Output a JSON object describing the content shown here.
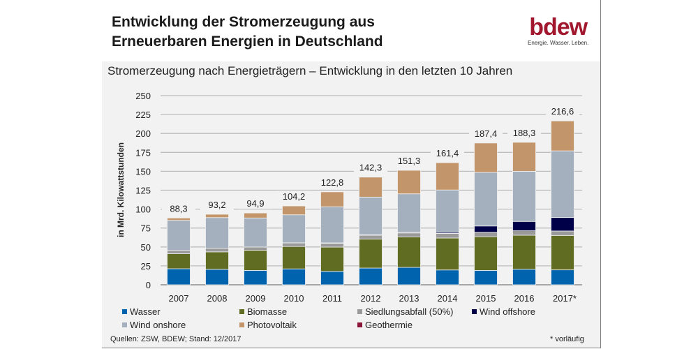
{
  "header": {
    "title_line1": "Entwicklung der Stromerzeugung aus",
    "title_line2": "Erneuerbaren Energien in Deutschland",
    "logo_text": "bdew",
    "logo_tagline": "Energie. Wasser. Leben."
  },
  "footer": {
    "source": "Quellen: ZSW, BDEW; Stand: 12/2017",
    "note": "* vorläufig"
  },
  "chart_data": {
    "type": "bar",
    "stacked": true,
    "title": "Stromerzeugung nach Energieträgern – Entwicklung in den letzten 10 Jahren",
    "xlabel": "",
    "ylabel": "in Mrd. Kilowattstunden",
    "ylim": [
      0,
      250
    ],
    "yticks": [
      0,
      25,
      50,
      75,
      100,
      125,
      150,
      175,
      200,
      225,
      250
    ],
    "grid": true,
    "legend_position": "bottom",
    "categories": [
      "2007",
      "2008",
      "2009",
      "2010",
      "2011",
      "2012",
      "2013",
      "2014",
      "2015",
      "2016",
      "2017*"
    ],
    "totals": [
      "88,3",
      "93,2",
      "94,9",
      "104,2",
      "122,8",
      "142,3",
      "151,3",
      "161,4",
      "187,4",
      "188,3",
      "216,6"
    ],
    "series": [
      {
        "name": "Wasser",
        "color": "#0063ad",
        "values": [
          21.2,
          20.4,
          19.0,
          21.0,
          17.7,
          22.1,
          23.0,
          19.6,
          19.0,
          20.5,
          19.7
        ]
      },
      {
        "name": "Biomasse",
        "color": "#606c22",
        "values": [
          19.8,
          23.1,
          26.6,
          29.6,
          32.1,
          38.3,
          40.1,
          42.2,
          44.6,
          45.0,
          45.5
        ]
      },
      {
        "name": "Siedlungsabfall (50%)",
        "color": "#9a9a9a",
        "values": [
          4.5,
          4.7,
          4.3,
          4.7,
          5.0,
          5.0,
          5.4,
          6.1,
          5.8,
          5.9,
          5.9
        ]
      },
      {
        "name": "Wind offshore",
        "color": "#000048",
        "values": [
          0,
          0,
          0,
          0.2,
          0.6,
          0.7,
          0.9,
          1.5,
          8.3,
          12.3,
          17.9
        ]
      },
      {
        "name": "Wind onshore",
        "color": "#a5b0be",
        "values": [
          39.7,
          40.6,
          38.4,
          37.0,
          47.7,
          49.8,
          50.8,
          55.9,
          70.9,
          66.3,
          88.0
        ]
      },
      {
        "name": "Photovoltaik",
        "color": "#c3956a",
        "values": [
          3.1,
          4.4,
          6.6,
          11.7,
          19.7,
          26.4,
          31.1,
          36.1,
          38.8,
          38.3,
          39.6
        ]
      },
      {
        "name": "Geothermie",
        "color": "#8b1538",
        "values": [
          0,
          0,
          0,
          0,
          0,
          0,
          0,
          0,
          0,
          0,
          0
        ]
      }
    ]
  }
}
